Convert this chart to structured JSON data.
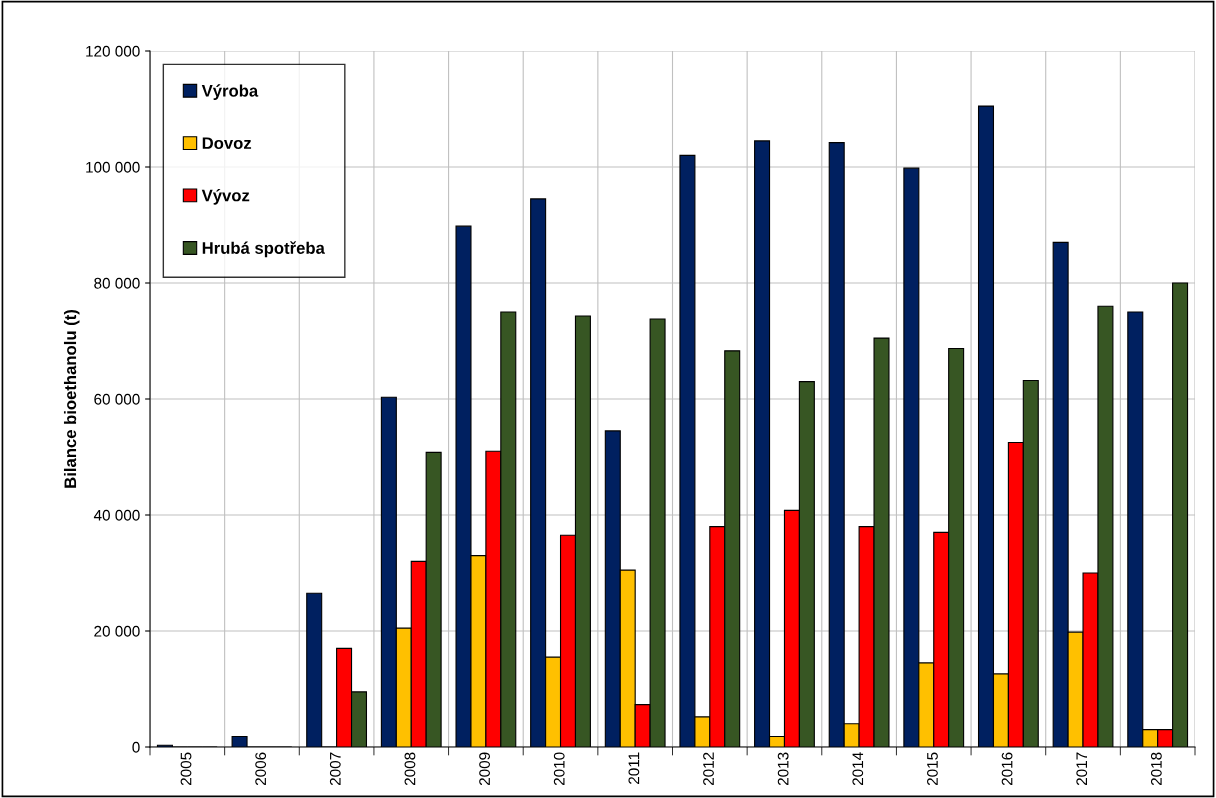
{
  "chart_data": {
    "type": "bar",
    "ylabel": "Bilance bioethanolu (t)",
    "categories": [
      "2005",
      "2006",
      "2007",
      "2008",
      "2009",
      "2010",
      "2011",
      "2012",
      "2013",
      "2014",
      "2015",
      "2016",
      "2017",
      "2018"
    ],
    "series": [
      {
        "name": "Výroba",
        "color": "#002060",
        "values": [
          300,
          1800,
          26500,
          60300,
          89800,
          94500,
          54500,
          102000,
          104500,
          104200,
          99800,
          110500,
          87000,
          75000
        ]
      },
      {
        "name": "Dovoz",
        "color": "#ffc000",
        "values": [
          0,
          0,
          0,
          20500,
          33000,
          15500,
          30500,
          5200,
          1800,
          4000,
          14500,
          12600,
          19800,
          3000
        ]
      },
      {
        "name": "Vývoz",
        "color": "#ff0000",
        "values": [
          0,
          0,
          17000,
          32000,
          51000,
          36500,
          7300,
          38000,
          40800,
          38000,
          37000,
          52500,
          30000,
          3000
        ]
      },
      {
        "name": "Hrubá spotřeba",
        "color": "#375623",
        "values": [
          0,
          0,
          9500,
          50800,
          75000,
          74300,
          73800,
          68300,
          63000,
          70500,
          68700,
          63200,
          76000,
          80000
        ]
      }
    ],
    "ylim": [
      0,
      120000
    ],
    "yticks": [
      0,
      {
        "value": 20000,
        "label": "20 000"
      },
      {
        "value": 40000,
        "label": "40 000"
      },
      {
        "value": 60000,
        "label": "60 000"
      },
      {
        "value": 80000,
        "label": "80 000"
      },
      {
        "value": 100000,
        "label": "100 000"
      },
      {
        "value": 120000,
        "label": "120 000"
      }
    ],
    "grid": true,
    "legend": "top left"
  }
}
